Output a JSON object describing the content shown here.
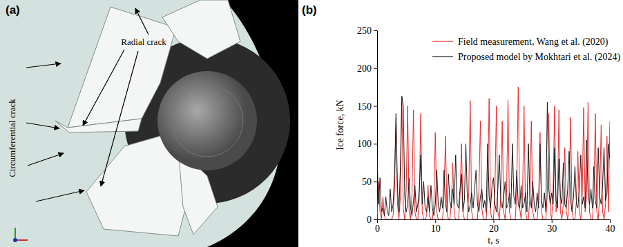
{
  "panel_a": {
    "label": "(a)",
    "annotations": [
      "Radial crack",
      "Circumferential crack"
    ]
  },
  "chart_data": {
    "type": "line",
    "title": "(b)",
    "x_label": "t, s",
    "y_label": "Ice force, kN",
    "x": [
      0,
      0.25,
      0.5,
      0.75,
      1,
      1.25,
      1.5,
      1.75,
      2,
      2.25,
      2.5,
      2.75,
      3,
      3.25,
      3.5,
      3.75,
      4,
      4.25,
      4.5,
      4.75,
      5,
      5.25,
      5.5,
      5.75,
      6,
      6.25,
      6.5,
      6.75,
      7,
      7.25,
      7.5,
      7.75,
      8,
      8.25,
      8.5,
      8.75,
      9,
      9.25,
      9.5,
      9.75,
      10,
      10.25,
      10.5,
      10.75,
      11,
      11.25,
      11.5,
      11.75,
      12,
      12.25,
      12.5,
      12.75,
      13,
      13.25,
      13.5,
      13.75,
      14,
      14.25,
      14.5,
      14.75,
      15,
      15.25,
      15.5,
      15.75,
      16,
      16.25,
      16.5,
      16.75,
      17,
      17.25,
      17.5,
      17.75,
      18,
      18.25,
      18.5,
      18.75,
      19,
      19.25,
      19.5,
      19.75,
      20,
      20.25,
      20.5,
      20.75,
      21,
      21.25,
      21.5,
      21.75,
      22,
      22.25,
      22.5,
      22.75,
      23,
      23.25,
      23.5,
      23.75,
      24,
      24.25,
      24.5,
      24.75,
      25,
      25.25,
      25.5,
      25.75,
      26,
      26.25,
      26.5,
      26.75,
      27,
      27.25,
      27.5,
      27.75,
      28,
      28.25,
      28.5,
      28.75,
      29,
      29.25,
      29.5,
      29.75,
      30,
      30.25,
      30.5,
      30.75,
      31,
      31.25,
      31.5,
      31.75,
      32,
      32.25,
      32.5,
      32.75,
      33,
      33.25,
      33.5,
      33.75,
      34,
      34.25,
      34.5,
      34.75,
      35,
      35.25,
      35.5,
      35.75,
      36,
      36.25,
      36.5,
      36.75,
      37,
      37.25,
      37.5,
      37.75,
      38,
      38.25,
      38.5,
      38.75,
      39,
      39.25,
      39.5,
      39.75,
      40
    ],
    "series": [
      {
        "name": "Field measurement, Wang et al. (2020)",
        "color": "#e8292b",
        "values": [
          0,
          50,
          10,
          0,
          30,
          5,
          0,
          0,
          0,
          0,
          0,
          5,
          40,
          135,
          20,
          0,
          30,
          162,
          15,
          0,
          40,
          150,
          10,
          0,
          35,
          145,
          10,
          0,
          0,
          30,
          140,
          10,
          0,
          0,
          5,
          45,
          5,
          0,
          0,
          20,
          115,
          10,
          0,
          0,
          0,
          0,
          30,
          110,
          10,
          0,
          0,
          20,
          75,
          5,
          0,
          0,
          0,
          30,
          100,
          10,
          0,
          0,
          0,
          35,
          157,
          10,
          0,
          0,
          0,
          0,
          40,
          130,
          15,
          0,
          0,
          0,
          35,
          160,
          10,
          0,
          0,
          40,
          150,
          10,
          0,
          30,
          130,
          10,
          0,
          35,
          158,
          10,
          0,
          0,
          0,
          0,
          40,
          175,
          15,
          0,
          35,
          150,
          10,
          0,
          0,
          30,
          130,
          10,
          0,
          0,
          0,
          25,
          115,
          10,
          0,
          0,
          0,
          35,
          140,
          10,
          0,
          40,
          150,
          10,
          30,
          145,
          10,
          0,
          20,
          95,
          10,
          0,
          30,
          135,
          10,
          0,
          0,
          25,
          90,
          10,
          0,
          35,
          148,
          10,
          30,
          155,
          10,
          0,
          0,
          30,
          140,
          10,
          0,
          30,
          125,
          10,
          0,
          20,
          110,
          10,
          130
        ]
      },
      {
        "name": "Proposed model by Mokhtari et al. (2024)",
        "color": "#1a1a1a",
        "values": [
          82,
          20,
          55,
          10,
          15,
          5,
          30,
          10,
          5,
          40,
          10,
          20,
          60,
          140,
          40,
          10,
          70,
          163,
          150,
          30,
          10,
          20,
          55,
          15,
          5,
          25,
          45,
          10,
          20,
          40,
          85,
          20,
          50,
          15,
          10,
          30,
          10,
          45,
          15,
          5,
          20,
          65,
          20,
          10,
          30,
          15,
          65,
          20,
          10,
          60,
          25,
          15,
          40,
          20,
          85,
          20,
          15,
          40,
          60,
          10,
          25,
          100,
          30,
          10,
          20,
          35,
          15,
          40,
          65,
          20,
          10,
          30,
          40,
          15,
          25,
          10,
          100,
          30,
          15,
          45,
          55,
          20,
          10,
          40,
          85,
          25,
          15,
          30,
          50,
          15,
          20,
          35,
          15,
          100,
          30,
          20,
          65,
          20,
          15,
          45,
          15,
          20,
          35,
          10,
          100,
          30,
          15,
          50,
          20,
          10,
          35,
          15,
          100,
          25,
          15,
          35,
          10,
          155,
          40,
          20,
          35,
          20,
          95,
          25,
          15,
          80,
          30,
          20,
          75,
          20,
          15,
          40,
          90,
          25,
          10,
          30,
          70,
          20,
          15,
          40,
          85,
          20,
          30,
          15,
          105,
          35,
          20,
          40,
          15,
          70,
          25,
          15,
          95,
          30,
          20,
          45,
          95,
          25,
          35,
          100,
          80
        ]
      }
    ],
    "xlim": [
      0,
      40
    ],
    "xticks": [
      0,
      10,
      20,
      30,
      40
    ],
    "ylim": [
      0,
      250
    ],
    "yticks": [
      0,
      50,
      100,
      150,
      200,
      250
    ],
    "grid": false,
    "legend": "top"
  }
}
